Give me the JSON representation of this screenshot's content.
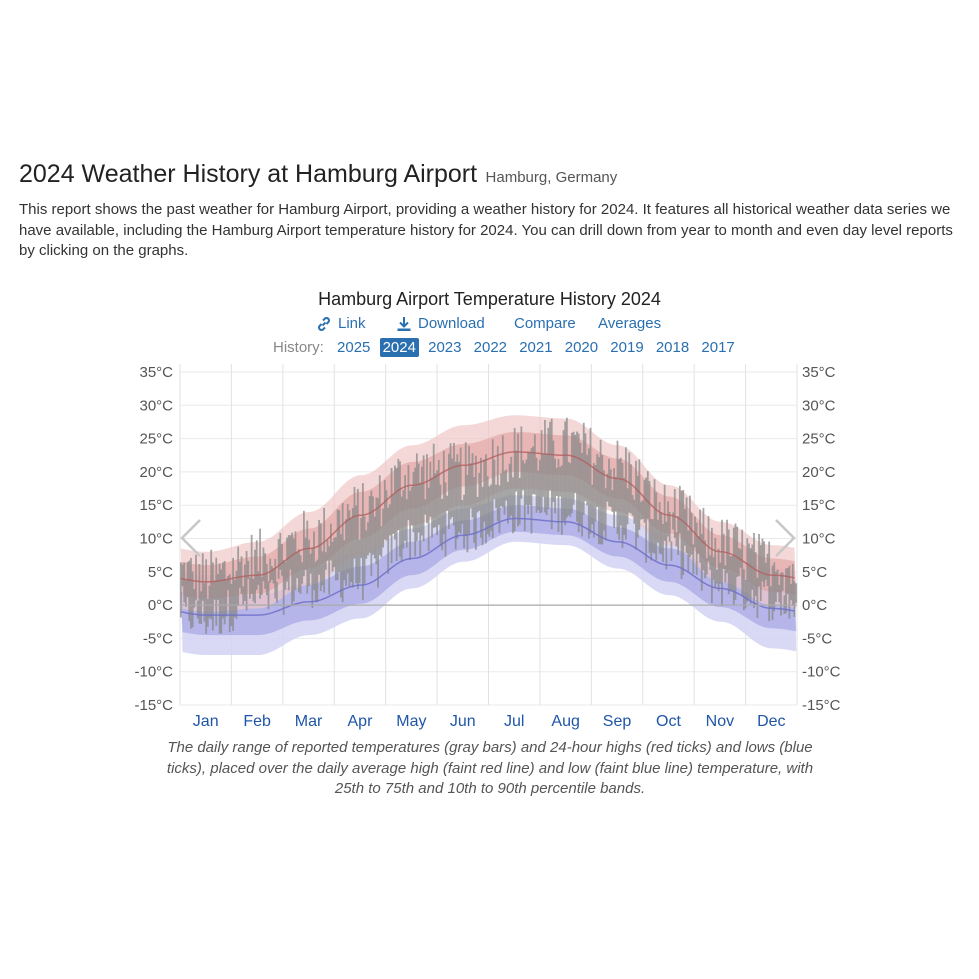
{
  "page": {
    "title": "2024 Weather History at Hamburg Airport",
    "location": "Hamburg, Germany",
    "intro": "This report shows the past weather for Hamburg Airport, providing a weather history for 2024. It features all historical weather data series we have available, including the Hamburg Airport temperature history for 2024. You can drill down from year to month and even day level reports by clicking on the graphs."
  },
  "toolbar": {
    "link_label": "Link",
    "download_label": "Download",
    "compare_label": "Compare",
    "averages_label": "Averages"
  },
  "history": {
    "label": "History:",
    "years": [
      "2025",
      "2024",
      "2023",
      "2022",
      "2021",
      "2020",
      "2019",
      "2018",
      "2017"
    ],
    "selected": "2024"
  },
  "caption": "The daily range of reported temperatures (gray bars) and 24-hour highs (red ticks) and lows (blue ticks), placed over the daily average high (faint red line) and low (faint blue line) temperature, with 25th to 75th and 10th to 90th percentile bands.",
  "colors": {
    "accent": "#2a6fb0",
    "high_line": "#b06060",
    "low_line": "#7070c8",
    "high_band_inner": "#e09a9a",
    "high_band_outer": "#f0c8c8",
    "low_band_inner": "#a8a8e6",
    "low_band_outer": "#d2d2f4",
    "range_bar": "#888888"
  },
  "chart_data": {
    "type": "area",
    "title": "Hamburg Airport Temperature History 2024",
    "x_categories": [
      "Jan",
      "Feb",
      "Mar",
      "Apr",
      "May",
      "Jun",
      "Jul",
      "Aug",
      "Sep",
      "Oct",
      "Nov",
      "Dec"
    ],
    "y_ticks": [
      "35°C",
      "30°C",
      "25°C",
      "20°C",
      "15°C",
      "10°C",
      "5°C",
      "0°C",
      "-5°C",
      "-10°C",
      "-15°C"
    ],
    "ylim": [
      -15,
      35
    ],
    "unit": "°C",
    "series": [
      {
        "name": "Average daily high",
        "monthly_values": [
          3.5,
          4.5,
          8.5,
          13.5,
          18,
          21,
          23,
          22.5,
          19,
          13.5,
          8,
          4.5
        ]
      },
      {
        "name": "Average daily low",
        "monthly_values": [
          -1.5,
          -1.5,
          0.5,
          3,
          7,
          10.5,
          13,
          12.5,
          9.5,
          6,
          2.5,
          -0.5
        ]
      },
      {
        "name": "High 25th-75th percentile band half-width",
        "monthly_values": [
          2.5,
          2.8,
          3,
          3.5,
          3.5,
          3.2,
          3,
          3,
          3,
          2.8,
          2.5,
          2.5
        ]
      },
      {
        "name": "High 10th-90th percentile band half-width",
        "monthly_values": [
          4.5,
          5,
          5.5,
          6,
          6,
          6,
          5.5,
          5.5,
          5,
          4.5,
          4.5,
          4.5
        ]
      },
      {
        "name": "Low 25th-75th percentile band half-width",
        "monthly_values": [
          3,
          3,
          2.8,
          2.8,
          2.5,
          2.2,
          2,
          2,
          2.2,
          2.5,
          2.8,
          3
        ]
      },
      {
        "name": "Low 10th-90th percentile band half-width",
        "monthly_values": [
          6,
          6,
          5,
          5,
          4.5,
          4,
          3.5,
          3.5,
          4,
          4.5,
          5,
          6
        ]
      },
      {
        "name": "Reported daily high 2024",
        "monthly_values": [
          4,
          7,
          10,
          14,
          20,
          20,
          23,
          24,
          21,
          14,
          9,
          6
        ]
      },
      {
        "name": "Reported daily low 2024",
        "monthly_values": [
          -2,
          1,
          3,
          4,
          10,
          11,
          14,
          14,
          12,
          8,
          3,
          1
        ]
      }
    ],
    "zero_line": 0,
    "nav": {
      "prev": "previous-year",
      "next": "next-year"
    }
  }
}
